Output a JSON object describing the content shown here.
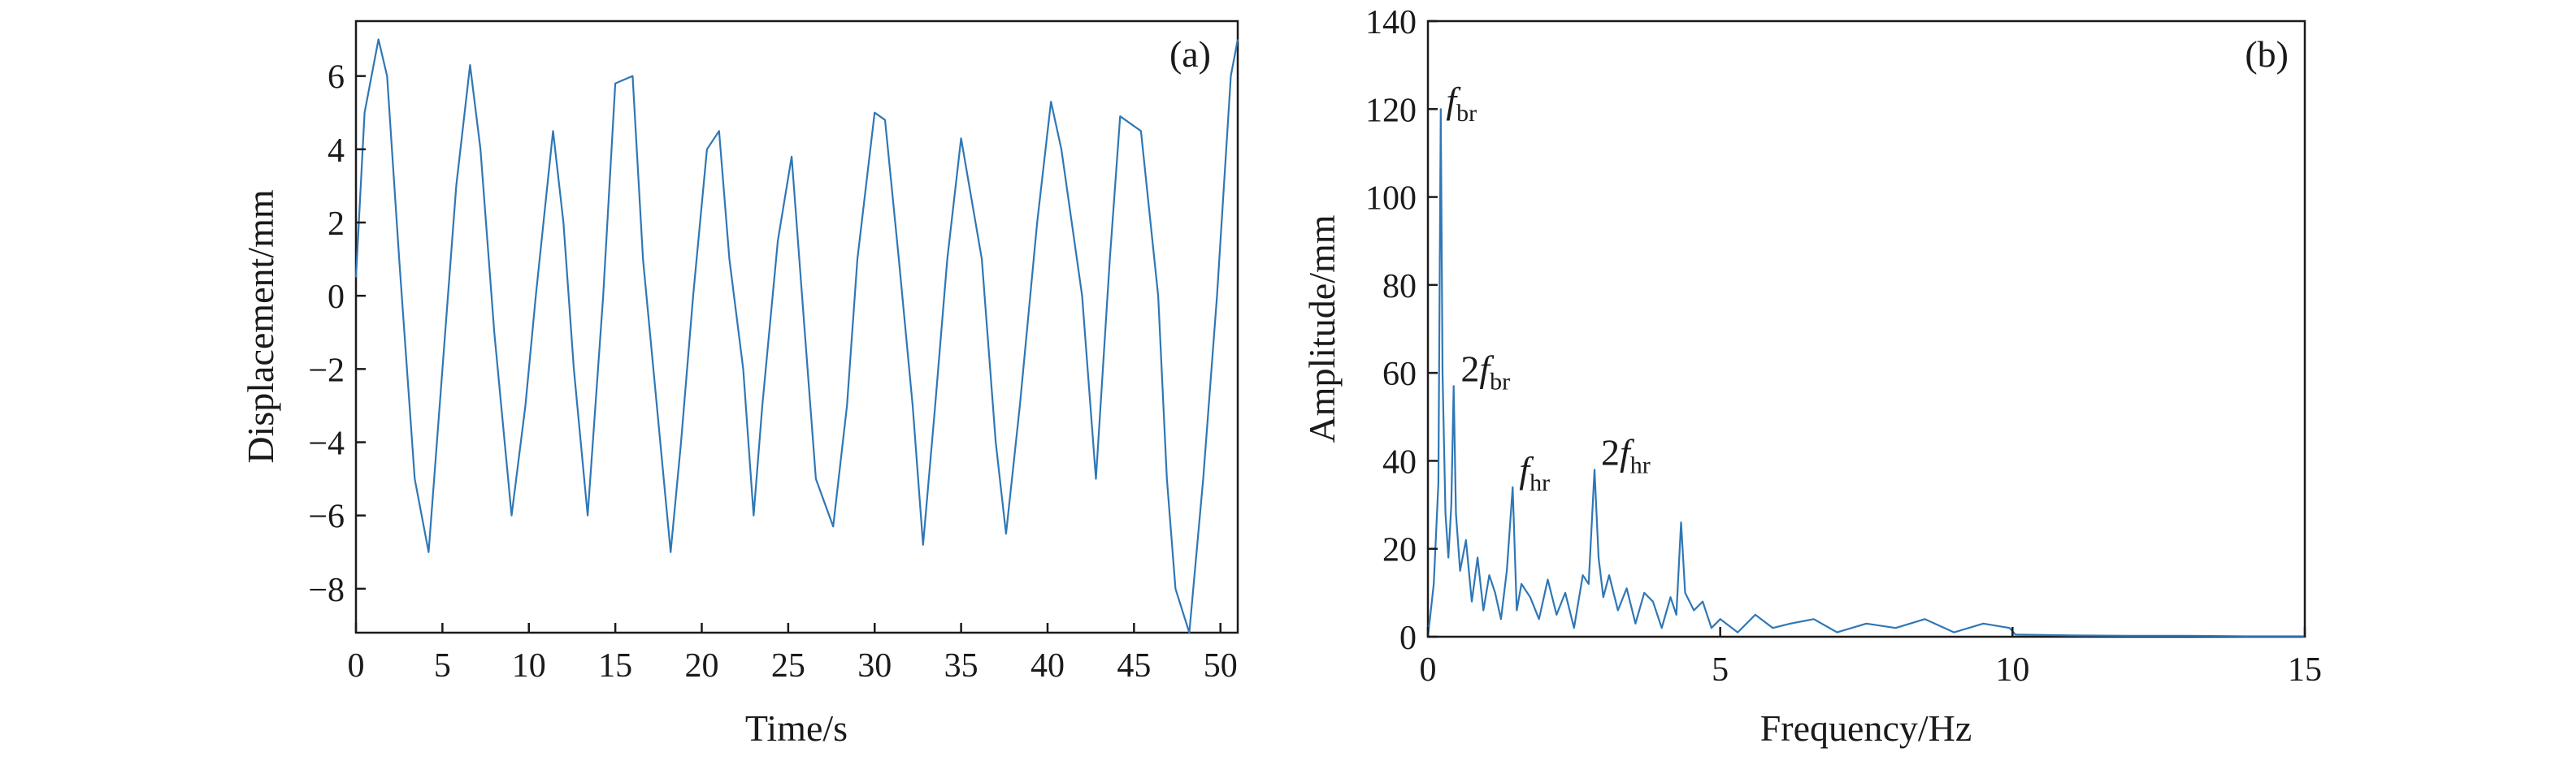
{
  "colors": {
    "series": "#2f77b5",
    "axis": "#1a1a1a"
  },
  "chart_data": [
    {
      "panel": "(a)",
      "type": "line",
      "xlabel": "Time/s",
      "ylabel": "Displacement/mm",
      "xlim": [
        0,
        51
      ],
      "ylim": [
        -9.2,
        7.5
      ],
      "xticks": [
        0,
        5,
        10,
        15,
        20,
        25,
        30,
        35,
        40,
        45,
        50
      ],
      "yticks": [
        -8,
        -6,
        -4,
        -2,
        0,
        2,
        4,
        6
      ],
      "grid": false,
      "series": [
        {
          "color": "#2f77b5",
          "x": [
            0,
            0.5,
            1.3,
            1.8,
            2.5,
            3.4,
            4.2,
            5.0,
            5.8,
            6.6,
            7.2,
            8.0,
            9.0,
            9.8,
            10.4,
            11.4,
            12.0,
            12.6,
            13.4,
            14.3,
            15.0,
            16.0,
            16.6,
            17.4,
            18.2,
            18.8,
            19.5,
            20.3,
            21.0,
            21.6,
            22.4,
            23.0,
            23.5,
            24.4,
            25.2,
            25.8,
            26.6,
            27.6,
            28.4,
            29.0,
            30.0,
            30.6,
            31.4,
            32.2,
            32.8,
            33.5,
            34.2,
            35.0,
            36.2,
            37.0,
            37.6,
            38.4,
            39.4,
            40.2,
            40.8,
            42.0,
            42.8,
            43.6,
            44.2,
            45.4,
            46.4,
            46.9,
            47.4,
            48.2,
            49.0,
            49.8,
            50.6,
            51.0
          ],
          "y": [
            0.5,
            5.0,
            7.0,
            6.0,
            1.0,
            -5.0,
            -7.0,
            -2.0,
            3.0,
            6.3,
            4.0,
            -1.0,
            -6.0,
            -3.0,
            0.0,
            4.5,
            2.0,
            -2.0,
            -6.0,
            0.0,
            5.8,
            6.0,
            1.0,
            -3.0,
            -7.0,
            -4.0,
            0.0,
            4.0,
            4.5,
            1.0,
            -2.0,
            -6.0,
            -3.0,
            1.5,
            3.8,
            0.0,
            -5.0,
            -6.3,
            -3.0,
            1.0,
            5.0,
            4.8,
            1.0,
            -3.0,
            -6.8,
            -3.0,
            1.0,
            4.3,
            1.0,
            -4.0,
            -6.5,
            -3.0,
            2.0,
            5.3,
            4.0,
            0.0,
            -5.0,
            1.0,
            4.9,
            4.5,
            0.0,
            -5.0,
            -8.0,
            -9.2,
            -5.0,
            0.0,
            6.0,
            7.0
          ]
        }
      ]
    },
    {
      "panel": "(b)",
      "type": "line",
      "xlabel": "Frequency/Hz",
      "ylabel": "Amplitude/mm",
      "xlim": [
        0,
        15
      ],
      "ylim": [
        0,
        140
      ],
      "xticks": [
        0,
        5,
        10,
        15
      ],
      "yticks": [
        0,
        20,
        40,
        60,
        80,
        100,
        120,
        140
      ],
      "grid": false,
      "annotations": [
        {
          "base": "f",
          "sub": "br",
          "x": 0.2,
          "y": 118
        },
        {
          "base": "2f",
          "sub": "br",
          "x": 0.45,
          "y": 57
        },
        {
          "base": "f",
          "sub": "hr",
          "x": 1.45,
          "y": 34
        },
        {
          "base": "2f",
          "sub": "hr",
          "x": 2.85,
          "y": 38
        }
      ],
      "series": [
        {
          "color": "#2f77b5",
          "x": [
            0.0,
            0.1,
            0.18,
            0.22,
            0.25,
            0.3,
            0.35,
            0.4,
            0.44,
            0.48,
            0.55,
            0.65,
            0.75,
            0.85,
            0.95,
            1.05,
            1.15,
            1.25,
            1.35,
            1.45,
            1.52,
            1.6,
            1.75,
            1.9,
            2.05,
            2.2,
            2.35,
            2.5,
            2.65,
            2.75,
            2.85,
            2.92,
            3.0,
            3.1,
            3.25,
            3.4,
            3.55,
            3.7,
            3.85,
            4.0,
            4.15,
            4.25,
            4.33,
            4.4,
            4.55,
            4.7,
            4.85,
            5.0,
            5.3,
            5.6,
            5.9,
            6.2,
            6.6,
            7.0,
            7.5,
            8.0,
            8.5,
            9.0,
            9.5,
            9.95,
            10.05,
            11.0,
            12.0,
            13.0,
            14.0,
            15.0
          ],
          "y": [
            0,
            12,
            35,
            120,
            60,
            28,
            18,
            30,
            57,
            28,
            15,
            22,
            8,
            18,
            6,
            14,
            10,
            4,
            15,
            34,
            6,
            12,
            9,
            4,
            13,
            5,
            10,
            2,
            14,
            12,
            38,
            18,
            9,
            14,
            6,
            11,
            3,
            10,
            8,
            2,
            9,
            5,
            26,
            10,
            6,
            8,
            2,
            4,
            1,
            5,
            2,
            3,
            4,
            1,
            3,
            2,
            4,
            1,
            3,
            2,
            0.5,
            0.3,
            0.2,
            0.2,
            0.1,
            0.1
          ]
        }
      ]
    }
  ]
}
